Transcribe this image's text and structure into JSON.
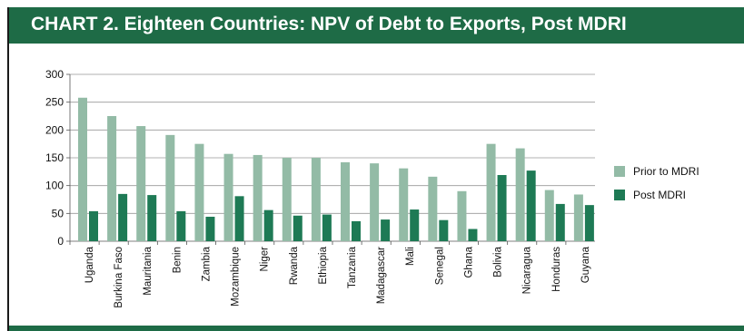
{
  "header": {
    "title": "CHART 2. Eighteen Countries: NPV of Debt to Exports, Post MDRI"
  },
  "colors": {
    "header_bg": "#1e6b46",
    "prior": "#93bba6",
    "post": "#1e7a55",
    "grid": "#999999"
  },
  "chart_data": {
    "type": "bar",
    "title": "CHART 2. Eighteen Countries: NPV of Debt to Exports, Post MDRI",
    "xlabel": "",
    "ylabel": "",
    "ylim": [
      0,
      300
    ],
    "yticks": [
      0,
      50,
      100,
      150,
      200,
      250,
      300
    ],
    "grid": true,
    "legend_position": "right",
    "categories": [
      "Uganda",
      "Burkina Faso",
      "Mauritania",
      "Benin",
      "Zambia",
      "Mozambique",
      "Niger",
      "Rwanda",
      "Ethiopia",
      "Tanzania",
      "Madagascar",
      "Mali",
      "Senegal",
      "Ghana",
      "Bolivia",
      "Nicaragua",
      "Honduras",
      "Guyana"
    ],
    "series": [
      {
        "name": "Prior to MDRI",
        "color": "#93bba6",
        "values": [
          258,
          225,
          207,
          191,
          175,
          157,
          155,
          150,
          150,
          142,
          140,
          131,
          116,
          90,
          175,
          167,
          92,
          84
        ]
      },
      {
        "name": "Post MDRI",
        "color": "#1e7a55",
        "values": [
          54,
          85,
          83,
          54,
          44,
          81,
          56,
          46,
          48,
          36,
          39,
          57,
          38,
          22,
          119,
          127,
          67,
          65
        ]
      }
    ]
  }
}
